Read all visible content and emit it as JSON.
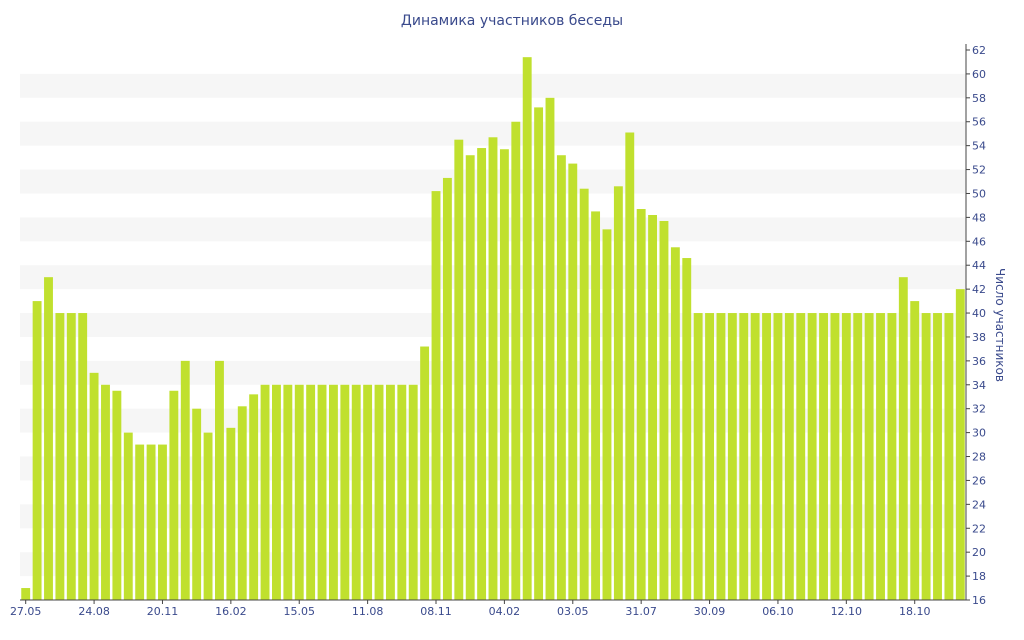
{
  "chart_data": {
    "type": "bar",
    "title": "Динамика участников беседы",
    "ylabel": "Число участников",
    "xlabel": "",
    "ylim": [
      16,
      62
    ],
    "y_ticks": [
      16,
      18,
      20,
      22,
      24,
      26,
      28,
      30,
      32,
      34,
      36,
      38,
      40,
      42,
      44,
      46,
      48,
      50,
      52,
      54,
      56,
      58,
      60,
      62
    ],
    "x_tick_labels": [
      {
        "index": 0,
        "label": "27.05"
      },
      {
        "index": 6,
        "label": "24.08"
      },
      {
        "index": 12,
        "label": "20.11"
      },
      {
        "index": 18,
        "label": "16.02"
      },
      {
        "index": 24,
        "label": "15.05"
      },
      {
        "index": 30,
        "label": "11.08"
      },
      {
        "index": 36,
        "label": "08.11"
      },
      {
        "index": 42,
        "label": "04.02"
      },
      {
        "index": 48,
        "label": "03.05"
      },
      {
        "index": 54,
        "label": "31.07"
      },
      {
        "index": 60,
        "label": "30.09"
      },
      {
        "index": 66,
        "label": "06.10"
      },
      {
        "index": 72,
        "label": "12.10"
      },
      {
        "index": 78,
        "label": "18.10"
      }
    ],
    "values": [
      17,
      41,
      43,
      40,
      40,
      40,
      35,
      34,
      33.5,
      30,
      29,
      29,
      29,
      33.5,
      36,
      32,
      30,
      36,
      30.4,
      32.2,
      33.2,
      34,
      34,
      34,
      34,
      34,
      34,
      34,
      34,
      34,
      34,
      34,
      34,
      34,
      34,
      37.2,
      50.2,
      51.3,
      54.5,
      53.2,
      53.8,
      54.7,
      53.7,
      56,
      61.4,
      57.2,
      58,
      53.2,
      52.5,
      50.4,
      48.5,
      47,
      50.6,
      55.1,
      48.7,
      48.2,
      47.7,
      45.5,
      44.6,
      40,
      40,
      40,
      40,
      40,
      40,
      40,
      40,
      40,
      40,
      40,
      40,
      40,
      40,
      40,
      40,
      40,
      40,
      43,
      41,
      40,
      40,
      40,
      42
    ],
    "grid": "horizontal bands",
    "legend": "none",
    "colors": {
      "bar": "#c0e02e",
      "band": "#f6f6f6",
      "axis": "#3a4a8c",
      "axis_line": "#444444"
    }
  }
}
